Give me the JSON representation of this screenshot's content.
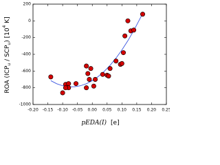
{
  "chart_data": {
    "type": "scatter",
    "x_label": [
      "pEDA(I)",
      "[e]"
    ],
    "y_label": [
      "ROA (ICP",
      "u",
      " / SCP",
      "u",
      ") [10",
      "4",
      " K]"
    ],
    "xlim": [
      -0.2,
      0.25
    ],
    "xticks": [
      {
        "value": -0.2,
        "label": "-0.20"
      },
      {
        "value": -0.15,
        "label": "-0.15"
      },
      {
        "value": -0.1,
        "label": "-0.10"
      },
      {
        "value": -0.05,
        "label": "-0.05"
      },
      {
        "value": 0,
        "label": "0.00"
      },
      {
        "value": 0.05,
        "label": "0.05"
      },
      {
        "value": 0.1,
        "label": "0.10"
      },
      {
        "value": 0.15,
        "label": "0.15"
      },
      {
        "value": 0.2,
        "label": "0.20"
      },
      {
        "value": 0.25,
        "label": "0.25"
      }
    ],
    "ylim": [
      -1000,
      200
    ],
    "yticks": [
      -1000,
      -800,
      -600,
      -400,
      -200,
      0,
      200
    ],
    "series": [
      {
        "style": "line",
        "color": "#3a55e0",
        "x": [
          -0.14,
          -0.12,
          -0.1,
          -0.08,
          -0.06,
          -0.04,
          -0.02,
          0,
          0.02,
          0.04,
          0.06,
          0.08,
          0.1,
          0.12,
          0.14,
          0.16,
          0.17
        ],
        "values": [
          -715,
          -752,
          -776,
          -788,
          -788,
          -776,
          -752,
          -715,
          -666,
          -605,
          -532,
          -446,
          -348,
          -238,
          -116,
          20,
          90
        ]
      },
      {
        "style": "markers",
        "color": "#d40000",
        "edgecolor": "#000000",
        "x": [
          -0.14,
          -0.1,
          -0.09,
          -0.08,
          -0.08,
          -0.09,
          -0.055,
          -0.02,
          -0.02,
          -0.015,
          -0.005,
          -0.01,
          0.005,
          0.01,
          0.035,
          0.05,
          0.055,
          0.06,
          0.08,
          0.095,
          0.1,
          0.105,
          0.11,
          0.12,
          0.13,
          0.14,
          0.17
        ],
        "values": [
          -670,
          -860,
          -760,
          -750,
          -800,
          -800,
          -750,
          -800,
          -540,
          -630,
          -570,
          -700,
          -780,
          -700,
          -640,
          -650,
          -660,
          -570,
          -480,
          -520,
          -510,
          -380,
          -180,
          0,
          -120,
          -110,
          80
        ]
      }
    ]
  }
}
